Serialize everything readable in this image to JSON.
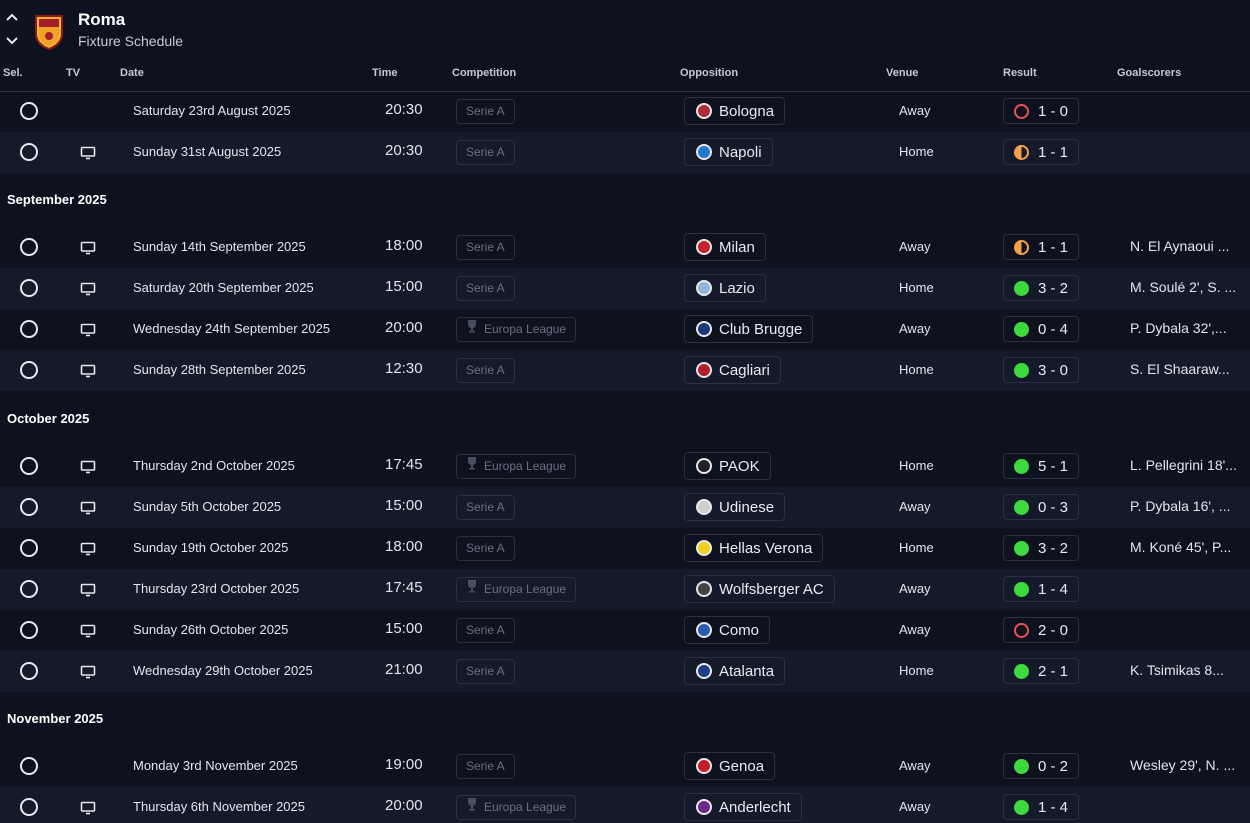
{
  "header": {
    "team_name": "Roma",
    "page_title": "Fixture Schedule",
    "up_icon": "chevron-up-icon",
    "down_icon": "chevron-down-icon"
  },
  "columns": {
    "sel": "Sel.",
    "tv": "TV",
    "date": "Date",
    "time": "Time",
    "competition": "Competition",
    "opposition": "Opposition",
    "venue": "Venue",
    "result": "Result",
    "goalscorers": "Goalscorers"
  },
  "months": [
    "September 2025",
    "October 2025",
    "November 2025"
  ],
  "colors": {
    "win": "#3ed93e",
    "draw": "#f5a04a",
    "loss": "#e9505a"
  },
  "fixtures": [
    {
      "date": "Saturday 23rd August 2025",
      "tv": false,
      "time": "20:30",
      "competition": "Serie A",
      "opposition": "Bologna",
      "venue": "Away",
      "outcome": "loss",
      "score": "1 - 0",
      "scorers": ""
    },
    {
      "date": "Sunday 31st August 2025",
      "tv": true,
      "time": "20:30",
      "competition": "Serie A",
      "opposition": "Napoli",
      "venue": "Home",
      "outcome": "draw",
      "score": "1 - 1",
      "scorers": ""
    },
    {
      "date": "Sunday 14th September 2025",
      "tv": true,
      "time": "18:00",
      "competition": "Serie A",
      "opposition": "Milan",
      "venue": "Away",
      "outcome": "draw",
      "score": "1 - 1",
      "scorers": "N. El Aynaoui ..."
    },
    {
      "date": "Saturday 20th September 2025",
      "tv": true,
      "time": "15:00",
      "competition": "Serie A",
      "opposition": "Lazio",
      "venue": "Home",
      "outcome": "win",
      "score": "3 - 2",
      "scorers": "M. Soulé 2', S. ..."
    },
    {
      "date": "Wednesday 24th September 2025",
      "tv": true,
      "time": "20:00",
      "competition": "Europa League",
      "opposition": "Club Brugge",
      "venue": "Away",
      "outcome": "win",
      "score": "0 - 4",
      "scorers": "P. Dybala 32',..."
    },
    {
      "date": "Sunday 28th September 2025",
      "tv": true,
      "time": "12:30",
      "competition": "Serie A",
      "opposition": "Cagliari",
      "venue": "Home",
      "outcome": "win",
      "score": "3 - 0",
      "scorers": "S. El Shaaraw..."
    },
    {
      "date": "Thursday 2nd October 2025",
      "tv": true,
      "time": "17:45",
      "competition": "Europa League",
      "opposition": "PAOK",
      "venue": "Home",
      "outcome": "win",
      "score": "5 - 1",
      "scorers": "L. Pellegrini 18'..."
    },
    {
      "date": "Sunday 5th October 2025",
      "tv": true,
      "time": "15:00",
      "competition": "Serie A",
      "opposition": "Udinese",
      "venue": "Away",
      "outcome": "win",
      "score": "0 - 3",
      "scorers": "P. Dybala 16', ..."
    },
    {
      "date": "Sunday 19th October 2025",
      "tv": true,
      "time": "18:00",
      "competition": "Serie A",
      "opposition": "Hellas Verona",
      "venue": "Home",
      "outcome": "win",
      "score": "3 - 2",
      "scorers": "M. Koné 45', P..."
    },
    {
      "date": "Thursday 23rd October 2025",
      "tv": true,
      "time": "17:45",
      "competition": "Europa League",
      "opposition": "Wolfsberger AC",
      "venue": "Away",
      "outcome": "win",
      "score": "1 - 4",
      "scorers": ""
    },
    {
      "date": "Sunday 26th October 2025",
      "tv": true,
      "time": "15:00",
      "competition": "Serie A",
      "opposition": "Como",
      "venue": "Away",
      "outcome": "loss",
      "score": "2 - 0",
      "scorers": ""
    },
    {
      "date": "Wednesday 29th October 2025",
      "tv": true,
      "time": "21:00",
      "competition": "Serie A",
      "opposition": "Atalanta",
      "venue": "Home",
      "outcome": "win",
      "score": "2 - 1",
      "scorers": "K. Tsimikas 8..."
    },
    {
      "date": "Monday 3rd November 2025",
      "tv": false,
      "time": "19:00",
      "competition": "Serie A",
      "opposition": "Genoa",
      "venue": "Away",
      "outcome": "win",
      "score": "0 - 2",
      "scorers": "Wesley 29', N. ..."
    },
    {
      "date": "Thursday 6th November 2025",
      "tv": true,
      "time": "20:00",
      "competition": "Europa League",
      "opposition": "Anderlecht",
      "venue": "Away",
      "outcome": "win",
      "score": "1 - 4",
      "scorers": ""
    }
  ]
}
